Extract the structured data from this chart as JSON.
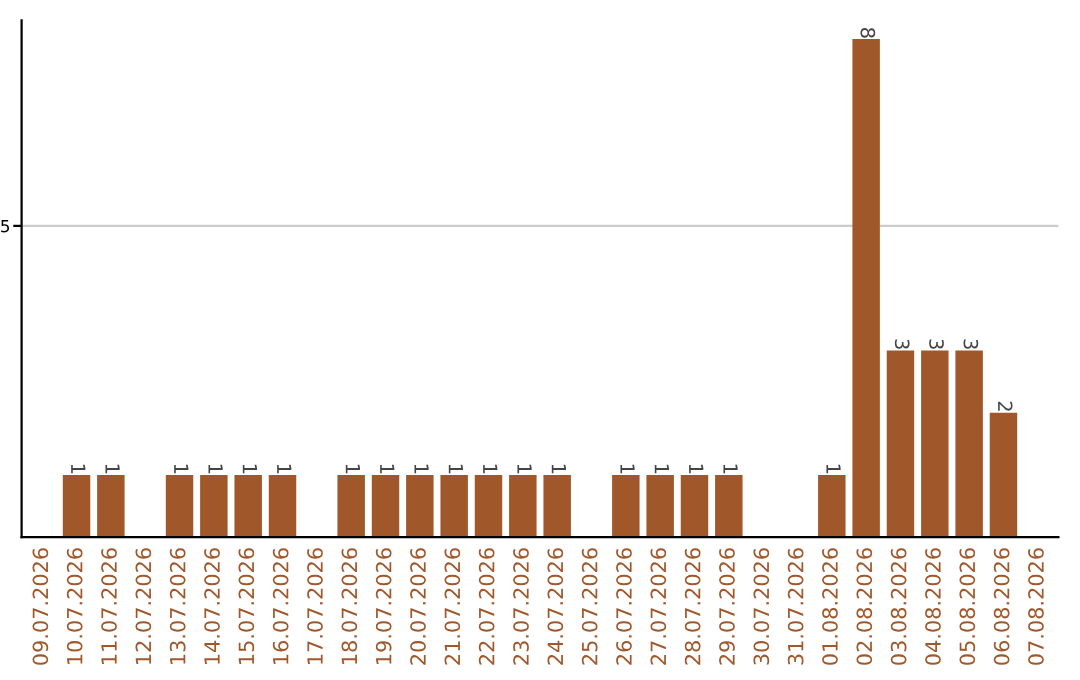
{
  "chart_data": {
    "type": "bar",
    "categories": [
      "09.07.2026",
      "10.07.2026",
      "11.07.2026",
      "12.07.2026",
      "13.07.2026",
      "14.07.2026",
      "15.07.2026",
      "16.07.2026",
      "17.07.2026",
      "18.07.2026",
      "19.07.2026",
      "20.07.2026",
      "21.07.2026",
      "22.07.2026",
      "23.07.2026",
      "24.07.2026",
      "25.07.2026",
      "26.07.2026",
      "27.07.2026",
      "28.07.2026",
      "29.07.2026",
      "30.07.2026",
      "31.07.2026",
      "01.08.2026",
      "02.08.2026",
      "03.08.2026",
      "04.08.2026",
      "05.08.2026",
      "06.08.2026",
      "07.08.2026"
    ],
    "values": [
      0,
      1,
      1,
      0,
      1,
      1,
      1,
      1,
      0,
      1,
      1,
      1,
      1,
      1,
      1,
      1,
      0,
      1,
      1,
      1,
      1,
      0,
      0,
      1,
      8,
      3,
      3,
      3,
      2,
      0
    ],
    "value_labels": [
      null,
      "1",
      "1",
      null,
      "1",
      "1",
      "1",
      "1",
      null,
      "1",
      "1",
      "1",
      "1",
      "1",
      "1",
      "1",
      null,
      "1",
      "1",
      "1",
      "1",
      null,
      null,
      "1",
      "8",
      "3",
      "3",
      "3",
      "2",
      null
    ],
    "color": "#a0572a",
    "ylim": [
      0,
      8.3
    ],
    "yticks": [
      5
    ],
    "grid": "y"
  }
}
